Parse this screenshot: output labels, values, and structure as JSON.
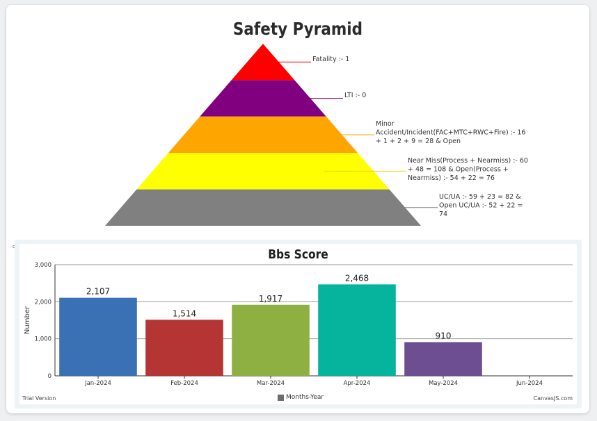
{
  "pyramid": {
    "title": "Safety Pyramid",
    "levels": [
      {
        "color": "#ff0000",
        "label": [
          "Fatality :- 1"
        ]
      },
      {
        "color": "#800080",
        "label": [
          "LTI :- 0"
        ]
      },
      {
        "color": "#ffa500",
        "label": [
          "Minor",
          "Accident/Incident(FAC+MTC+RWC+Fire) :- 16",
          "+ 1 + 2 + 9 = 28 & Open"
        ]
      },
      {
        "color": "#ffff00",
        "label": [
          "Near Miss(Process + Nearmiss) :- 60",
          "+ 48 = 108 & Open(Process +",
          "Nearmiss) :- 54 + 22 = 76"
        ]
      },
      {
        "color": "#808080",
        "label": [
          "UC/UA :- 59 + 23 = 82 &",
          "Open UC/UA :- 52 + 22 =",
          "74"
        ]
      }
    ]
  },
  "chart_data": {
    "type": "bar",
    "title": "Bbs Score",
    "ylabel": "Number",
    "xlabel": "",
    "legend": "Months-Year",
    "categories": [
      "Jan-2024",
      "Feb-2024",
      "Mar-2024",
      "Apr-2024",
      "May-2024",
      "Jun-2024"
    ],
    "values": [
      2107,
      1514,
      1917,
      2468,
      910,
      null
    ],
    "value_labels": [
      "2,107",
      "1,514",
      "1,917",
      "2,468",
      "910",
      ""
    ],
    "colors": [
      "#3a70b4",
      "#b53535",
      "#8eb042",
      "#06b39d",
      "#6d4e91",
      "#cccccc"
    ],
    "ylim": [
      0,
      3000
    ],
    "yticks": [
      0,
      1000,
      2000,
      3000
    ],
    "ytick_labels": [
      "0",
      "1,000",
      "2,000",
      "3,000"
    ],
    "grid": true
  },
  "footer": {
    "trial": "Trial Version",
    "brand": "CanvasJS.com"
  }
}
